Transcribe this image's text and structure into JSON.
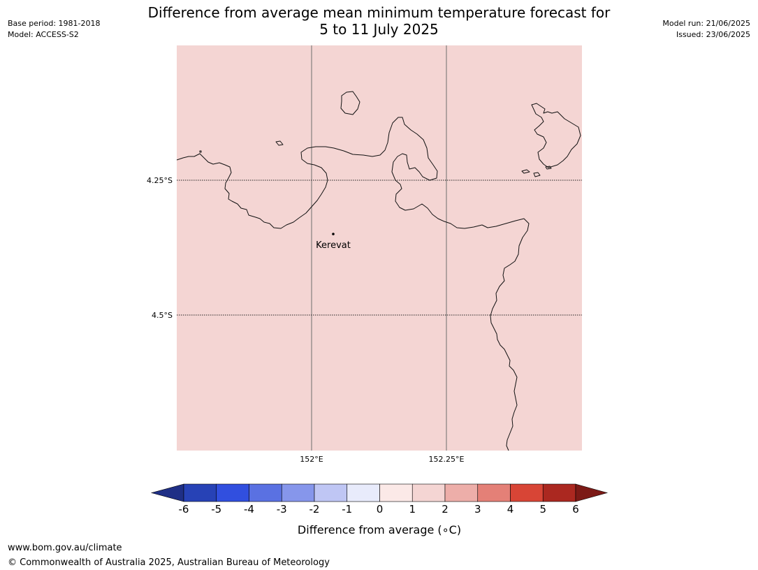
{
  "title_line1": "Difference from average mean minimum temperature forecast for",
  "title_line2": "5 to 11 July 2025",
  "meta_left": [
    "Base period: 1981-2018",
    "Model: ACCESS-S2"
  ],
  "meta_right": [
    "Model run: 21/06/2025",
    "Issued: 23/06/2025"
  ],
  "map": {
    "fill_color": "#f4d5d3",
    "lat_labels": [
      "4.25°S",
      "4.5°S"
    ],
    "lon_labels": [
      "152°E",
      "152.25°E"
    ],
    "place": {
      "name": "Kerevat"
    }
  },
  "colorbar": {
    "label": "Difference from average (∘C)",
    "ticks": [
      "-6",
      "-5",
      "-4",
      "-3",
      "-2",
      "-1",
      "0",
      "1",
      "2",
      "3",
      "4",
      "5",
      "6"
    ],
    "colors": [
      "#1f2f86",
      "#2742b6",
      "#314fdf",
      "#5a71e2",
      "#8696eb",
      "#bfc6f4",
      "#e8ebfb",
      "#fbe9e7",
      "#f4d5d3",
      "#edaea9",
      "#e48077",
      "#d84536",
      "#ab2820",
      "#7c1a16"
    ]
  },
  "footer": [
    "www.bom.gov.au/climate",
    "© Commonwealth of Australia 2025, Australian Bureau of Meteorology"
  ]
}
